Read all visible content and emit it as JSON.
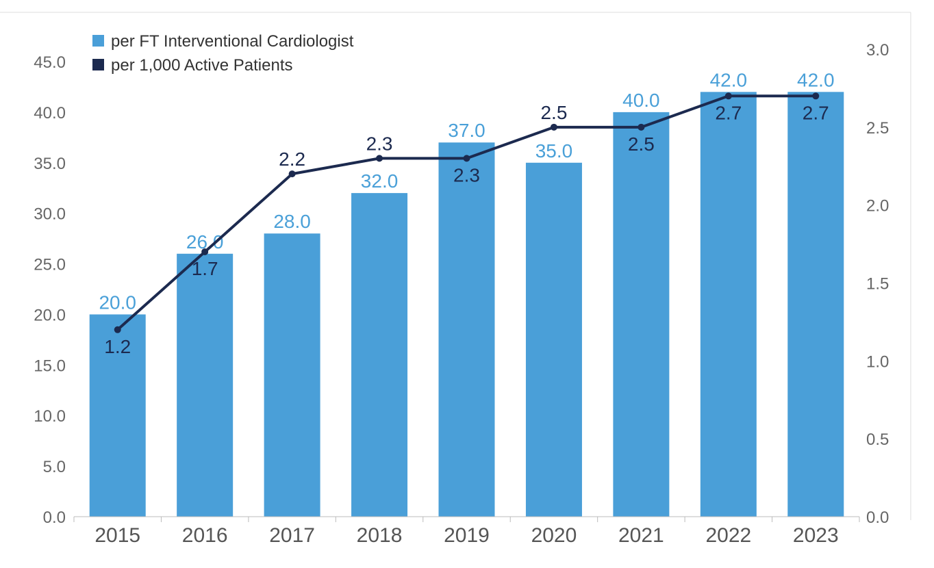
{
  "chart_data": {
    "type": "bar",
    "categories": [
      "2015",
      "2016",
      "2017",
      "2018",
      "2019",
      "2020",
      "2021",
      "2022",
      "2023"
    ],
    "series": [
      {
        "name": "per FT Interventional Cardiologist",
        "type": "bar",
        "axis": "left",
        "color": "#4a9fd8",
        "values": [
          20.0,
          26.0,
          28.0,
          32.0,
          37.0,
          35.0,
          40.0,
          42.0,
          42.0
        ],
        "labels": [
          "20.0",
          "26.0",
          "28.0",
          "32.0",
          "37.0",
          "35.0",
          "40.0",
          "42.0",
          "42.0"
        ]
      },
      {
        "name": "per 1,000 Active Patients",
        "type": "line",
        "axis": "right",
        "color": "#1c2a4f",
        "values": [
          1.2,
          1.7,
          2.2,
          2.3,
          2.3,
          2.5,
          2.5,
          2.7,
          2.7
        ],
        "labels": [
          "1.2",
          "1.7",
          "2.2",
          "2.3",
          "2.3",
          "2.5",
          "2.5",
          "2.7",
          "2.7"
        ],
        "label_positions": [
          "below",
          "below",
          "above",
          "above",
          "below",
          "above",
          "below",
          "below",
          "below"
        ]
      }
    ],
    "y_left": {
      "lim": [
        0,
        45
      ],
      "ticks": [
        "0.0",
        "5.0",
        "10.0",
        "15.0",
        "20.0",
        "25.0",
        "30.0",
        "35.0",
        "40.0",
        "45.0"
      ]
    },
    "y_right": {
      "lim": [
        0,
        3.0
      ],
      "ticks": [
        "0.0",
        "0.5",
        "1.0",
        "1.5",
        "2.0",
        "2.5",
        "3.0"
      ]
    },
    "legend_position": "top-left",
    "grid": false,
    "title": "",
    "xlabel": "",
    "ylabel": ""
  }
}
